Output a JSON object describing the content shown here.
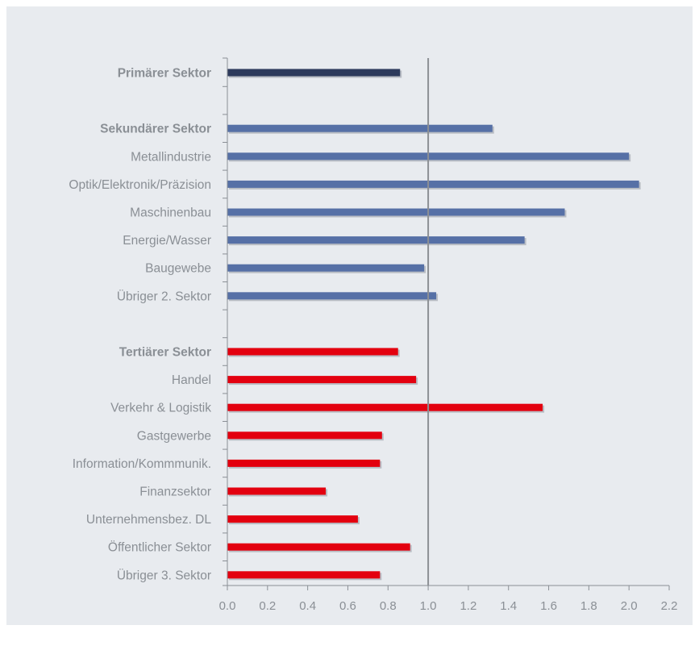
{
  "chart_data": {
    "type": "bar",
    "orientation": "horizontal",
    "xlim": [
      0.0,
      2.2
    ],
    "xticks": [
      "0.0",
      "0.2",
      "0.4",
      "0.6",
      "0.8",
      "1.0",
      "1.2",
      "1.4",
      "1.6",
      "1.8",
      "2.0",
      "2.2"
    ],
    "reference_line": 1.0,
    "grid": false,
    "rows": [
      {
        "label": "Primärer Sektor",
        "value": 0.86,
        "group": "primary",
        "bold": true
      },
      {
        "label": "",
        "value": null,
        "group": "spacer",
        "bold": false
      },
      {
        "label": "Sekundärer Sektor",
        "value": 1.32,
        "group": "secondary",
        "bold": true
      },
      {
        "label": "Metallindustrie",
        "value": 2.0,
        "group": "secondary",
        "bold": false
      },
      {
        "label": "Optik/Elektronik/Präzision",
        "value": 2.05,
        "group": "secondary",
        "bold": false
      },
      {
        "label": "Maschinenbau",
        "value": 1.68,
        "group": "secondary",
        "bold": false
      },
      {
        "label": "Energie/Wasser",
        "value": 1.48,
        "group": "secondary",
        "bold": false
      },
      {
        "label": "Baugewebe",
        "value": 0.98,
        "group": "secondary",
        "bold": false
      },
      {
        "label": "Übriger 2. Sektor",
        "value": 1.04,
        "group": "secondary",
        "bold": false
      },
      {
        "label": "",
        "value": null,
        "group": "spacer",
        "bold": false
      },
      {
        "label": "Tertiärer Sektor",
        "value": 0.85,
        "group": "tertiary",
        "bold": true
      },
      {
        "label": "Handel",
        "value": 0.94,
        "group": "tertiary",
        "bold": false
      },
      {
        "label": "Verkehr & Logistik",
        "value": 1.57,
        "group": "tertiary",
        "bold": false
      },
      {
        "label": "Gastgewerbe",
        "value": 0.77,
        "group": "tertiary",
        "bold": false
      },
      {
        "label": "Information/Kommmunik.",
        "value": 0.76,
        "group": "tertiary",
        "bold": false
      },
      {
        "label": "Finanzsektor",
        "value": 0.49,
        "group": "tertiary",
        "bold": false
      },
      {
        "label": "Unternehmensbez. DL",
        "value": 0.65,
        "group": "tertiary",
        "bold": false
      },
      {
        "label": "Öffentlicher Sektor",
        "value": 0.91,
        "group": "tertiary",
        "bold": false
      },
      {
        "label": "Übriger 3. Sektor",
        "value": 0.76,
        "group": "tertiary",
        "bold": false
      }
    ],
    "colors": {
      "primary": "#2d3a5c",
      "secondary": "#5670a6",
      "tertiary": "#e3000f",
      "shadow": "#b9bdc4",
      "axis": "#8a8f95",
      "reference_line": "#8c8f94",
      "background": "#e8ebef"
    }
  }
}
